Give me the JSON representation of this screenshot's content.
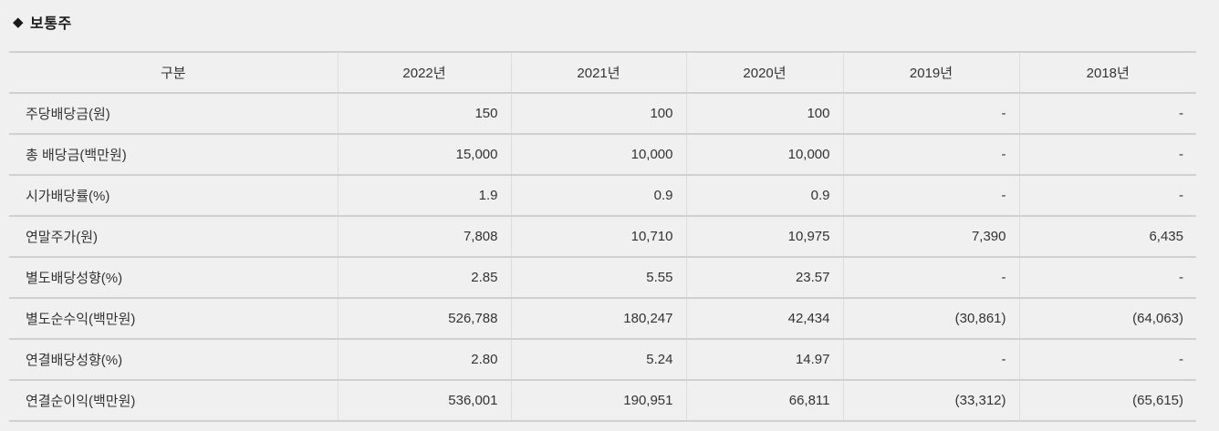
{
  "section": {
    "bullet": "◆",
    "title": "보통주"
  },
  "table": {
    "columns": [
      "구분",
      "2022년",
      "2021년",
      "2020년",
      "2019년",
      "2018년"
    ],
    "rows": [
      {
        "label": "주당배당금(원)",
        "values": [
          "150",
          "100",
          "100",
          "-",
          "-"
        ]
      },
      {
        "label": "총 배당금(백만원)",
        "values": [
          "15,000",
          "10,000",
          "10,000",
          "-",
          "-"
        ]
      },
      {
        "label": "시가배당률(%)",
        "values": [
          "1.9",
          "0.9",
          "0.9",
          "-",
          "-"
        ]
      },
      {
        "label": "연말주가(원)",
        "values": [
          "7,808",
          "10,710",
          "10,975",
          "7,390",
          "6,435"
        ]
      },
      {
        "label": "별도배당성향(%)",
        "values": [
          "2.85",
          "5.55",
          "23.57",
          "-",
          "-"
        ]
      },
      {
        "label": "별도순수익(백만원)",
        "values": [
          "526,788",
          "180,247",
          "42,434",
          "(30,861)",
          "(64,063)"
        ]
      },
      {
        "label": "연결배당성향(%)",
        "values": [
          "2.80",
          "5.24",
          "14.97",
          "-",
          "-"
        ]
      },
      {
        "label": "연결순이익(백만원)",
        "values": [
          "536,001",
          "190,951",
          "66,811",
          "(33,312)",
          "(65,615)"
        ]
      }
    ]
  },
  "colors": {
    "page_background": "#f0f0f1",
    "border_horizontal": "#d0d0d0",
    "border_vertical": "#dddddd",
    "text": "#333333",
    "title_text": "#1a1a1a"
  }
}
